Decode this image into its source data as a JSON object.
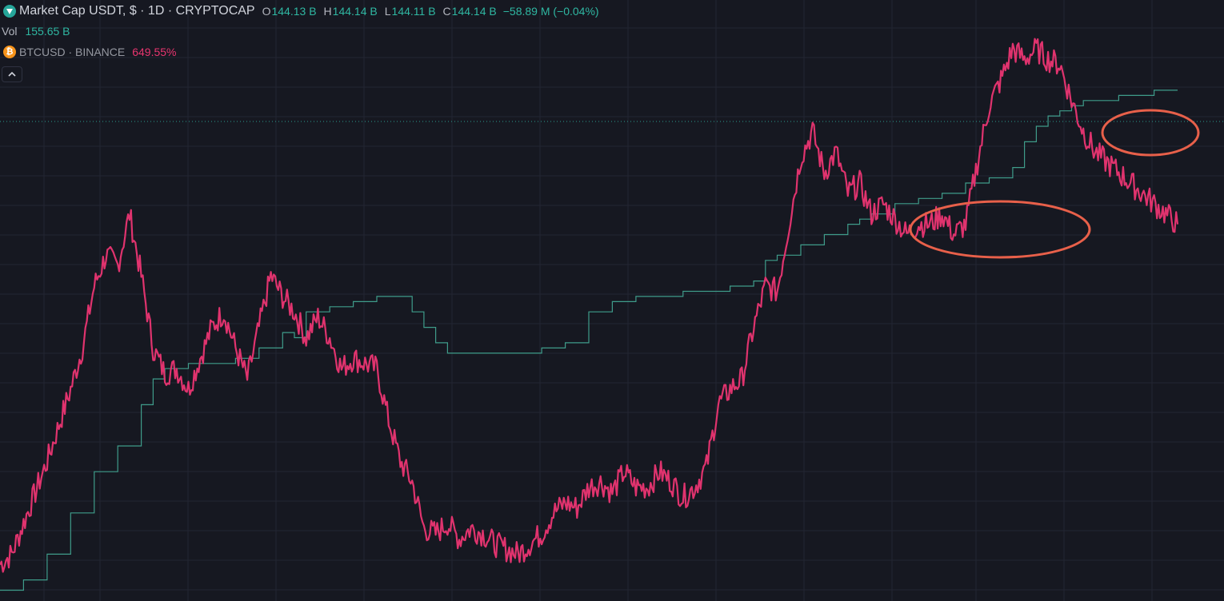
{
  "legend": {
    "main_symbol": "Market Cap USDT, $ · 1D · CRYPTOCAP",
    "open_label": "O",
    "open_value": "144.13 B",
    "high_label": "H",
    "high_value": "144.14 B",
    "low_label": "L",
    "low_value": "144.11 B",
    "close_label": "C",
    "close_value": "144.14 B",
    "change": "−58.89 M (−0.04%)",
    "vol_label": "Vol",
    "vol_value": "155.65 B",
    "compare_symbol": "BTCUSD · BINANCE",
    "compare_change": "649.55%",
    "collapse_icon": "chevron-up-icon"
  },
  "colors": {
    "background": "#161821",
    "grid": "#232633",
    "usdt_series": "#3f9c8a",
    "btc_series": "#e0336e",
    "annotation": "#e8604a",
    "last_price_line": "#2a9d8f"
  },
  "chart_data": {
    "type": "line",
    "title": "",
    "xlabel": "",
    "ylabel": "",
    "y_scale": "log",
    "ylim": [
      0,
      100
    ],
    "grid": true,
    "series": [
      {
        "name": "Market Cap USDT",
        "style": "step-line",
        "x": [
          0,
          2,
          4,
          6,
          8,
          10,
          12,
          13,
          14,
          16,
          18,
          20,
          22,
          24,
          25,
          26,
          28,
          30,
          32,
          33,
          34,
          35,
          36,
          37,
          38,
          40,
          42,
          44,
          46,
          48,
          50,
          52,
          54,
          55,
          56,
          58,
          60,
          62,
          64,
          65,
          66,
          68,
          70,
          72,
          73,
          74,
          76,
          78,
          80,
          82,
          84,
          86,
          87,
          88,
          89,
          90,
          91,
          92,
          93,
          94,
          95,
          96,
          97,
          98,
          100
        ],
        "values": [
          1,
          3,
          8,
          16,
          24,
          29,
          37,
          42,
          44,
          45,
          45,
          46,
          48,
          51,
          50,
          55,
          56,
          57,
          58,
          58,
          58,
          55,
          52,
          49,
          47,
          47,
          47,
          47,
          48,
          49,
          55,
          57,
          58,
          58,
          58,
          59,
          59,
          60,
          61,
          65,
          66,
          68,
          70,
          72,
          73,
          74,
          76,
          77,
          78,
          80,
          81,
          83,
          88,
          91,
          93,
          94,
          95,
          96,
          96,
          96,
          97,
          97,
          97,
          98,
          98
        ]
      },
      {
        "name": "BTCUSD",
        "style": "line",
        "x": [
          0,
          1,
          2,
          3,
          4,
          5,
          6,
          7,
          8,
          9,
          10,
          11,
          12,
          13,
          14,
          15,
          16,
          17,
          18,
          19,
          20,
          21,
          22,
          23,
          24,
          25,
          26,
          27,
          28,
          29,
          30,
          31,
          32,
          33,
          34,
          35,
          36,
          37,
          38,
          39,
          40,
          41,
          42,
          43,
          44,
          45,
          46,
          47,
          48,
          49,
          50,
          51,
          52,
          53,
          54,
          55,
          56,
          57,
          58,
          59,
          60,
          61,
          62,
          63,
          64,
          65,
          66,
          67,
          68,
          69,
          70,
          71,
          72,
          73,
          74,
          75,
          76,
          77,
          78,
          79,
          80,
          81,
          82,
          83,
          84,
          85,
          86,
          87,
          88,
          89,
          90,
          91,
          92,
          93,
          94,
          95,
          96,
          97,
          98,
          99,
          100
        ],
        "values": [
          6,
          8,
          14,
          20,
          26,
          33,
          40,
          48,
          60,
          66,
          64,
          74,
          62,
          48,
          43,
          44,
          40,
          46,
          52,
          55,
          48,
          42,
          52,
          62,
          58,
          55,
          50,
          54,
          50,
          44,
          46,
          45,
          44,
          34,
          26,
          22,
          13,
          12,
          14,
          11,
          13,
          12,
          10,
          9,
          8,
          10,
          12,
          16,
          18,
          17,
          21,
          22,
          20,
          24,
          21,
          21,
          24,
          22,
          19,
          21,
          25,
          37,
          40,
          42,
          52,
          60,
          59,
          72,
          85,
          90,
          82,
          86,
          78,
          80,
          74,
          76,
          73,
          70,
          72,
          72,
          74,
          70,
          72,
          84,
          95,
          100,
          106,
          104,
          106,
          104,
          103,
          96,
          90,
          86,
          84,
          82,
          80,
          78,
          76,
          74,
          72
        ]
      }
    ],
    "annotations": [
      {
        "shape": "ellipse",
        "label": ""
      },
      {
        "shape": "ellipse",
        "label": ""
      }
    ]
  }
}
